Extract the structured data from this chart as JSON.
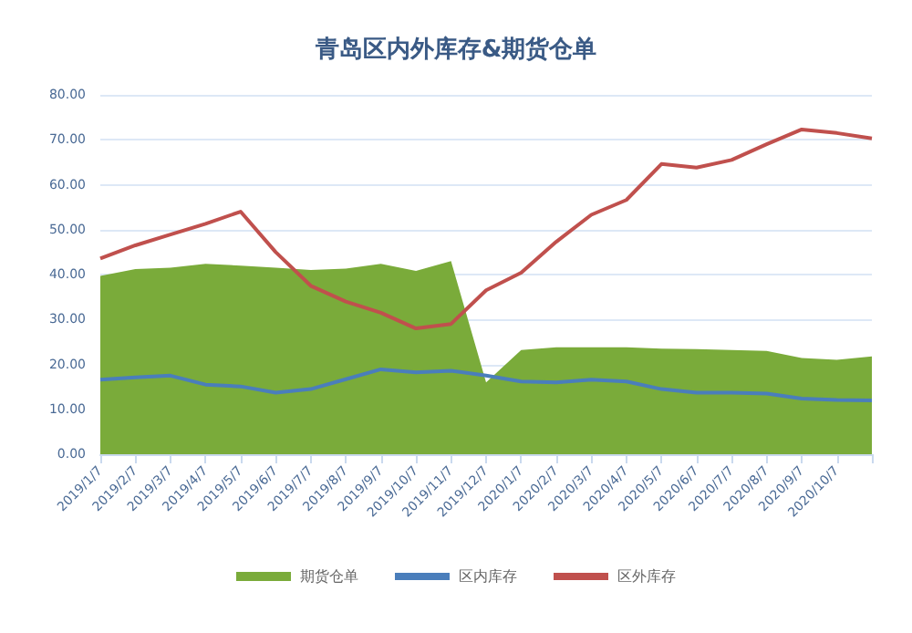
{
  "chart_data": {
    "type": "line",
    "title": "青岛区内外库存&期货仓单",
    "categories": [
      "2019/1/7",
      "2019/2/7",
      "2019/3/7",
      "2019/4/7",
      "2019/5/7",
      "2019/6/7",
      "2019/7/7",
      "2019/8/7",
      "2019/9/7",
      "2019/10/7",
      "2019/11/7",
      "2019/12/7",
      "2020/1/7",
      "2020/2/7",
      "2020/3/7",
      "2020/4/7",
      "2020/5/7",
      "2020/6/7",
      "2020/7/7",
      "2020/8/7",
      "2020/9/7",
      "2020/10/7",
      null
    ],
    "series": [
      {
        "name": "期货仓单",
        "type": "area",
        "color": "#7aab3a",
        "values": [
          39.7,
          41.2,
          41.5,
          42.4,
          42,
          41.5,
          41,
          41.3,
          42.4,
          40.8,
          43,
          16,
          23.2,
          23.8,
          23.8,
          23.8,
          23.5,
          23.4,
          23.2,
          23,
          21.4,
          21,
          21.8
        ]
      },
      {
        "name": "区内库存",
        "color": "#4a7ebb",
        "values": [
          16.6,
          17.1,
          17.5,
          15.5,
          15.1,
          13.7,
          14.5,
          16.7,
          18.9,
          18.2,
          18.6,
          17.5,
          16.2,
          16,
          16.6,
          16.2,
          14.5,
          13.7,
          13.7,
          13.5,
          12.4,
          12.1,
          12
        ]
      },
      {
        "name": "区外库存",
        "color": "#c0504d",
        "values": [
          43.6,
          46.5,
          48.9,
          51.3,
          54,
          45,
          37.5,
          34,
          31.5,
          28,
          29,
          36.5,
          40.4,
          47.3,
          53.3,
          56.6,
          64.6,
          63.8,
          65.5,
          69,
          72.3,
          71.5,
          70.3
        ]
      }
    ],
    "ylim": [
      0,
      80
    ],
    "yticks": [
      {
        "value": 0,
        "label": "0.00"
      },
      {
        "value": 10,
        "label": "10.00"
      },
      {
        "value": 20,
        "label": "20.00"
      },
      {
        "value": 30,
        "label": "30.00"
      },
      {
        "value": 40,
        "label": "40.00"
      },
      {
        "value": 50,
        "label": "50.00"
      },
      {
        "value": 60,
        "label": "60.00"
      },
      {
        "value": 70,
        "label": "70.00"
      },
      {
        "value": 80,
        "label": "80.00"
      }
    ],
    "grid": "y",
    "legend": "bottom",
    "marker": "none",
    "line_style": "solid"
  }
}
